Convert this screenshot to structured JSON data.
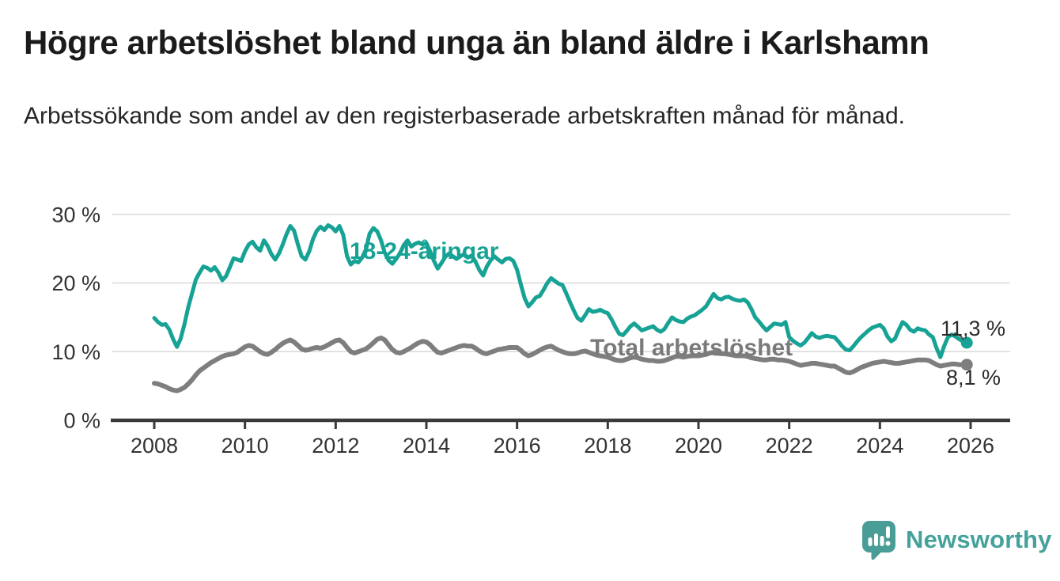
{
  "header": {
    "title": "Högre arbetslöshet bland unga än bland äldre i Karlshamn",
    "subtitle": "Arbetssökande som andel av den registerbaserade arbetskraften månad för månad."
  },
  "footer": {
    "brand_name": "Newsworthy"
  },
  "colors": {
    "young_line": "#16a294",
    "total_line": "#7e7e7e",
    "gridline": "#d9d9d9",
    "axis": "#3a3a3a",
    "tick_label": "#333333",
    "end_label_text": "#2b2b2b",
    "brand_teal": "#4a9d97"
  },
  "chart_data": {
    "type": "line",
    "unit": "%",
    "x_start": "2008-01",
    "x_end": "2025-12",
    "points_per_year": 12,
    "x_ticks": [
      2008,
      2010,
      2012,
      2014,
      2016,
      2018,
      2020,
      2022,
      2024,
      2026
    ],
    "y_ticks": [
      0,
      10,
      20,
      30
    ],
    "y_tick_suffix": " %",
    "ylim": [
      0,
      31
    ],
    "grid": "horizontal",
    "legend_position": "inline-labels",
    "series": [
      {
        "name": "18-24-åringar",
        "color": "#16a294",
        "end_label": "11,3 %",
        "end_value": 11.3,
        "values": [
          14.9,
          14.3,
          13.9,
          14.0,
          13.2,
          11.8,
          10.7,
          11.9,
          14.0,
          16.5,
          18.5,
          20.5,
          21.5,
          22.4,
          22.2,
          21.8,
          22.3,
          21.5,
          20.4,
          21.0,
          22.3,
          23.6,
          23.4,
          23.2,
          24.6,
          25.6,
          26.0,
          25.2,
          24.7,
          26.2,
          25.4,
          24.2,
          23.4,
          24.3,
          25.6,
          27.1,
          28.3,
          27.6,
          25.6,
          23.9,
          23.4,
          24.6,
          26.4,
          27.6,
          28.2,
          27.7,
          28.4,
          28.1,
          27.5,
          28.3,
          27.0,
          23.9,
          22.7,
          23.2,
          23.0,
          23.7,
          24.9,
          27.2,
          28.0,
          27.5,
          26.2,
          24.4,
          23.3,
          22.8,
          23.5,
          24.3,
          25.5,
          26.2,
          25.3,
          25.7,
          25.9,
          25.6,
          25.8,
          24.6,
          23.2,
          22.1,
          22.9,
          23.8,
          24.3,
          23.9,
          23.5,
          23.9,
          24.2,
          23.7,
          24.0,
          23.1,
          21.9,
          21.1,
          22.4,
          23.3,
          23.9,
          23.4,
          23.0,
          23.5,
          23.6,
          23.2,
          21.9,
          19.8,
          17.8,
          16.6,
          17.2,
          17.9,
          18.1,
          19.0,
          20.0,
          20.7,
          20.3,
          19.9,
          19.7,
          18.5,
          17.2,
          16.0,
          14.9,
          14.5,
          15.3,
          16.2,
          15.8,
          15.9,
          16.1,
          15.8,
          15.6,
          14.7,
          13.6,
          12.6,
          12.4,
          13.0,
          13.7,
          14.1,
          13.6,
          13.1,
          13.3,
          13.5,
          13.7,
          13.2,
          12.9,
          13.3,
          14.2,
          15.0,
          14.6,
          14.4,
          14.3,
          14.8,
          15.1,
          15.3,
          15.7,
          16.1,
          16.6,
          17.5,
          18.4,
          17.8,
          17.6,
          17.9,
          18.0,
          17.7,
          17.5,
          17.4,
          17.6,
          17.2,
          16.2,
          15.0,
          14.4,
          13.7,
          13.1,
          13.6,
          14.1,
          14.0,
          13.9,
          14.3,
          12.1,
          11.6,
          11.2,
          10.9,
          11.3,
          12.0,
          12.7,
          12.2,
          12.0,
          12.2,
          12.3,
          12.2,
          12.1,
          11.5,
          10.8,
          10.3,
          10.2,
          10.8,
          11.5,
          12.1,
          12.6,
          13.1,
          13.5,
          13.7,
          13.9,
          13.4,
          12.2,
          11.5,
          11.9,
          13.2,
          14.3,
          13.9,
          13.2,
          12.9,
          13.4,
          13.2,
          13.1,
          12.5,
          12.1,
          10.5,
          9.2,
          10.8,
          12.1,
          12.5,
          12.2,
          11.8,
          11.5,
          11.3
        ]
      },
      {
        "name": "Total arbetslöshet",
        "color": "#7e7e7e",
        "end_label": "8,1 %",
        "end_value": 8.1,
        "values": [
          5.4,
          5.3,
          5.1,
          4.9,
          4.6,
          4.4,
          4.3,
          4.5,
          4.8,
          5.3,
          5.9,
          6.6,
          7.2,
          7.6,
          8.0,
          8.4,
          8.7,
          9.0,
          9.3,
          9.5,
          9.6,
          9.7,
          9.9,
          10.3,
          10.7,
          10.9,
          10.8,
          10.4,
          10.0,
          9.7,
          9.6,
          9.9,
          10.3,
          10.8,
          11.2,
          11.5,
          11.7,
          11.4,
          10.9,
          10.4,
          10.2,
          10.3,
          10.5,
          10.6,
          10.5,
          10.7,
          11.0,
          11.3,
          11.6,
          11.7,
          11.3,
          10.6,
          10.0,
          9.8,
          10.0,
          10.2,
          10.4,
          10.8,
          11.3,
          11.8,
          12.0,
          11.7,
          11.0,
          10.3,
          9.9,
          9.8,
          10.0,
          10.3,
          10.6,
          11.0,
          11.3,
          11.5,
          11.4,
          11.0,
          10.4,
          9.9,
          9.8,
          10.0,
          10.2,
          10.4,
          10.6,
          10.8,
          10.9,
          10.8,
          10.8,
          10.5,
          10.1,
          9.8,
          9.7,
          9.9,
          10.1,
          10.3,
          10.4,
          10.5,
          10.6,
          10.6,
          10.6,
          10.2,
          9.7,
          9.4,
          9.6,
          9.9,
          10.2,
          10.5,
          10.7,
          10.8,
          10.5,
          10.2,
          10.0,
          9.8,
          9.7,
          9.7,
          9.8,
          10.0,
          10.1,
          9.9,
          9.7,
          9.5,
          9.4,
          9.3,
          9.2,
          9.0,
          8.8,
          8.7,
          8.7,
          8.9,
          9.1,
          9.2,
          9.1,
          8.9,
          8.8,
          8.7,
          8.7,
          8.6,
          8.6,
          8.7,
          8.9,
          9.1,
          9.3,
          9.3,
          9.2,
          9.3,
          9.4,
          9.4,
          9.4,
          9.5,
          9.6,
          9.8,
          9.9,
          9.8,
          9.7,
          9.7,
          9.6,
          9.5,
          9.4,
          9.4,
          9.4,
          9.3,
          9.1,
          9.0,
          8.9,
          8.8,
          8.8,
          8.9,
          8.9,
          8.8,
          8.8,
          8.7,
          8.6,
          8.4,
          8.2,
          8.0,
          8.1,
          8.2,
          8.3,
          8.3,
          8.2,
          8.1,
          8.0,
          7.9,
          7.9,
          7.6,
          7.3,
          7.0,
          6.9,
          7.1,
          7.4,
          7.7,
          7.9,
          8.1,
          8.3,
          8.4,
          8.5,
          8.6,
          8.5,
          8.4,
          8.3,
          8.3,
          8.4,
          8.5,
          8.6,
          8.7,
          8.8,
          8.8,
          8.8,
          8.7,
          8.4,
          8.1,
          7.9,
          8.0,
          8.1,
          8.2,
          8.2,
          8.1,
          8.1,
          8.1
        ]
      }
    ]
  }
}
